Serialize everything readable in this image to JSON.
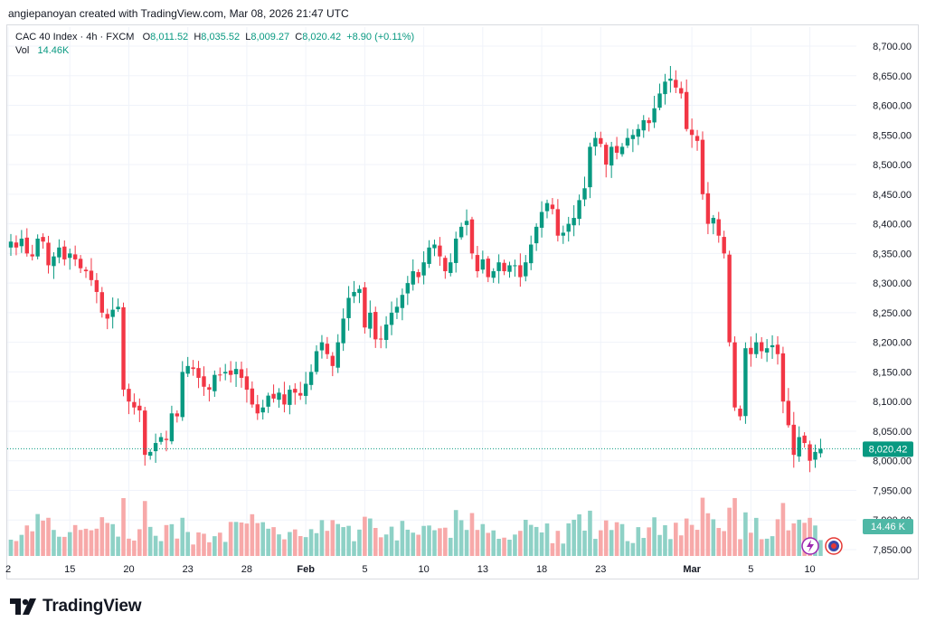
{
  "header": {
    "attribution": "angiepanoyan created with TradingView.com, Mar 08, 2026 21:47 UTC"
  },
  "legend": {
    "symbol": "CAC 40 Index · 4h · FXCM",
    "open_label": "O",
    "open": "8,011.52",
    "high_label": "H",
    "high": "8,035.52",
    "low_label": "L",
    "low": "8,009.27",
    "close_label": "C",
    "close": "8,020.42",
    "change": "+8.90 (+0.11%)",
    "vol_label": "Vol",
    "vol": "14.46K"
  },
  "price_badge": "8,020.42",
  "vol_badge": "14.46 K",
  "logo_text": "TradingView",
  "colors": {
    "up": "#089981",
    "down": "#f23645",
    "up_vol": "#8ed1c6",
    "down_vol": "#f7a9a9",
    "grid": "#f0f3fa",
    "text": "#131722"
  },
  "chart_data": {
    "type": "candlestick",
    "title": "CAC 40 Index · 4h · FXCM",
    "ylim": [
      7820,
      8720
    ],
    "y_ticks": [
      7850,
      7900,
      7950,
      8000,
      8050,
      8100,
      8150,
      8200,
      8250,
      8300,
      8350,
      8400,
      8450,
      8500,
      8550,
      8600,
      8650,
      8700
    ],
    "y_tick_labels": [
      "7,850.00",
      "7,900.00",
      "7,950.00",
      "8,000.00",
      "8,050.00",
      "8,100.00",
      "8,150.00",
      "8,200.00",
      "8,250.00",
      "8,300.00",
      "8,350.00",
      "8,400.00",
      "8,450.00",
      "8,500.00",
      "8,550.00",
      "8,600.00",
      "8,650.00",
      "8,700.00"
    ],
    "x_ticks": [
      {
        "label": "2",
        "index": -0.5
      },
      {
        "label": "15",
        "index": 11
      },
      {
        "label": "20",
        "index": 22
      },
      {
        "label": "23",
        "index": 33
      },
      {
        "label": "28",
        "index": 44
      },
      {
        "label": "Feb",
        "index": 55,
        "bold": true
      },
      {
        "label": "5",
        "index": 66
      },
      {
        "label": "10",
        "index": 77
      },
      {
        "label": "13",
        "index": 88
      },
      {
        "label": "18",
        "index": 99
      },
      {
        "label": "23",
        "index": 110
      },
      {
        "label": "Mar",
        "index": 127,
        "bold": true
      },
      {
        "label": "5",
        "index": 138
      },
      {
        "label": "10",
        "index": 149
      }
    ],
    "last_close": 8020.42,
    "volume_max": 100,
    "closes": [
      8370,
      8360,
      8375,
      8350,
      8345,
      8375,
      8370,
      8330,
      8345,
      8360,
      8340,
      8350,
      8340,
      8325,
      8320,
      8305,
      8285,
      8250,
      8240,
      8255,
      8260,
      8120,
      8100,
      8090,
      8085,
      8010,
      8015,
      8030,
      8040,
      8035,
      8080,
      8075,
      8150,
      8160,
      8155,
      8140,
      8125,
      8120,
      8145,
      8145,
      8150,
      8145,
      8155,
      8140,
      8120,
      8095,
      8080,
      8090,
      8110,
      8105,
      8115,
      8095,
      8120,
      8115,
      8110,
      8130,
      8150,
      8185,
      8200,
      8180,
      8160,
      8200,
      8240,
      8275,
      8285,
      8290,
      8225,
      8250,
      8205,
      8205,
      8230,
      8250,
      8260,
      8280,
      8300,
      8320,
      8310,
      8335,
      8360,
      8365,
      8345,
      8320,
      8335,
      8375,
      8395,
      8405,
      8350,
      8320,
      8340,
      8310,
      8320,
      8335,
      8320,
      8330,
      8330,
      8310,
      8335,
      8365,
      8395,
      8420,
      8435,
      8425,
      8380,
      8385,
      8400,
      8410,
      8440,
      8460,
      8530,
      8545,
      8535,
      8500,
      8530,
      8520,
      8530,
      8545,
      8550,
      8560,
      8575,
      8570,
      8595,
      8620,
      8640,
      8645,
      8630,
      8620,
      8560,
      8550,
      8540,
      8450,
      8400,
      8410,
      8380,
      8350,
      8200,
      8090,
      8075,
      8190,
      8180,
      8200,
      8185,
      8190,
      8195,
      8180,
      8100,
      8060,
      8010,
      8040,
      8030,
      8000,
      8015,
      8020
    ]
  }
}
